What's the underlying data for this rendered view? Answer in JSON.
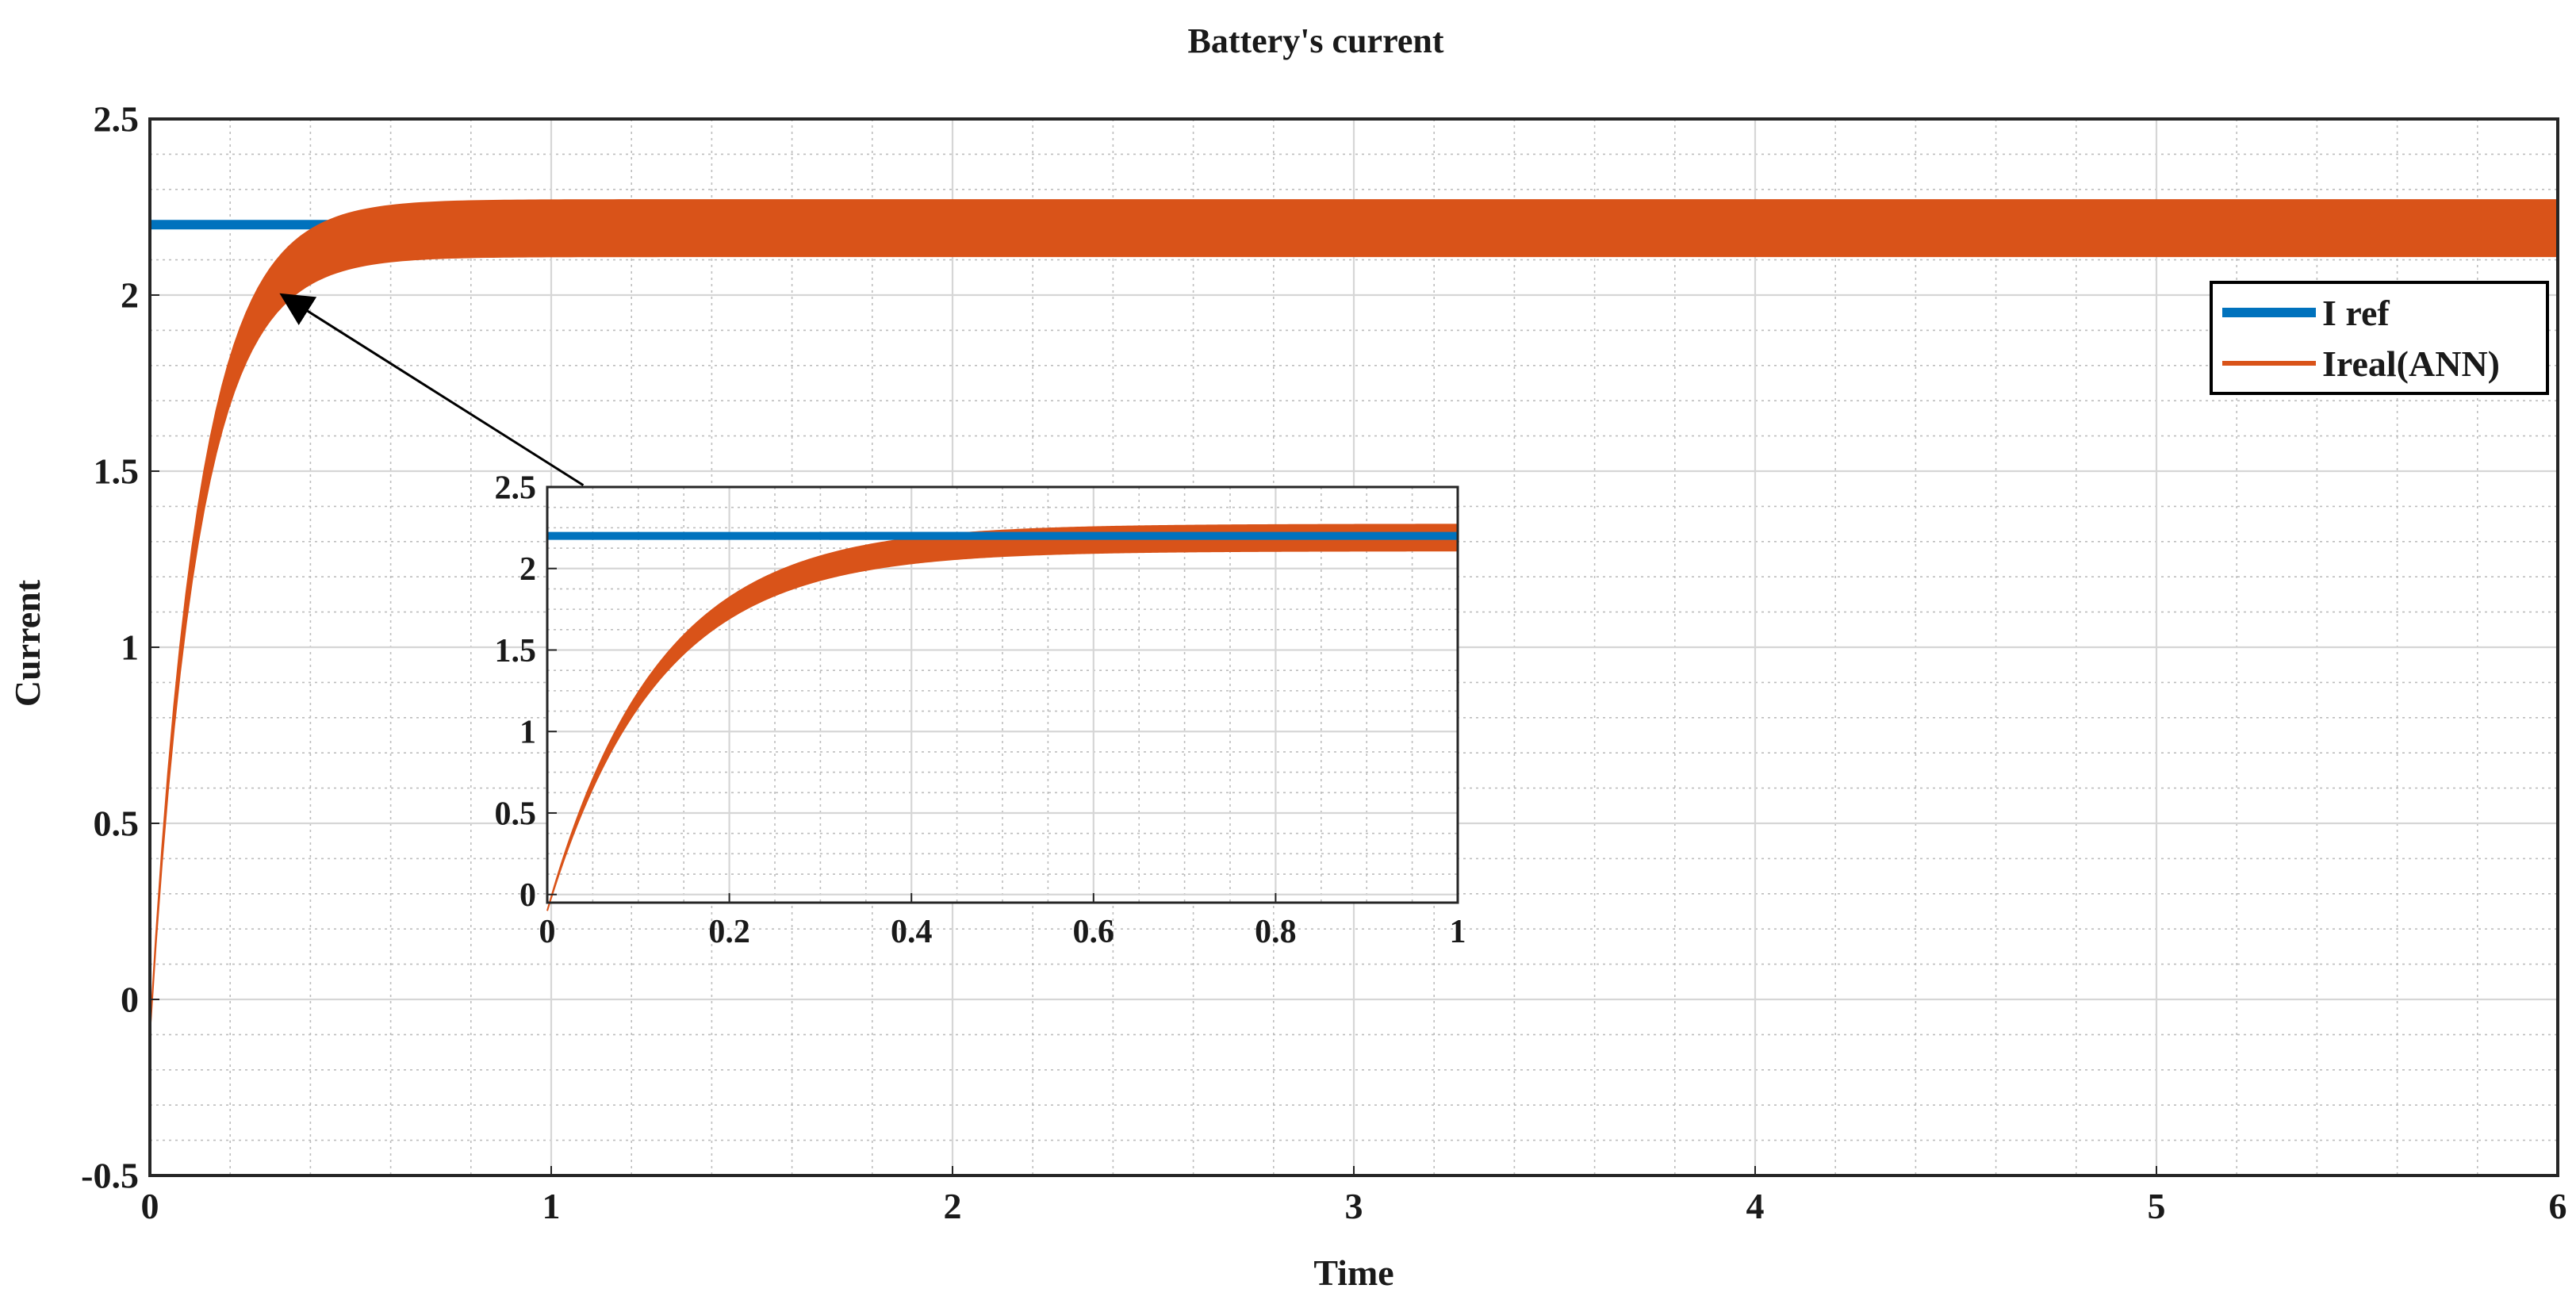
{
  "chart_data": {
    "type": "line",
    "title": "Battery's current",
    "xlabel": "Time",
    "ylabel": "Current",
    "xlim": [
      0,
      6
    ],
    "ylim": [
      -0.5,
      2.5
    ],
    "xticks": [
      0,
      1,
      2,
      3,
      4,
      5,
      6
    ],
    "xtick_labels": [
      "0",
      "1",
      "2",
      "3",
      "4",
      "5",
      "6"
    ],
    "yticks": [
      -0.5,
      0,
      0.5,
      1,
      1.5,
      2,
      2.5
    ],
    "ytick_labels": [
      "-0.5",
      "0",
      "0.5",
      "1",
      "1.5",
      "2",
      "2.5"
    ],
    "grid": true,
    "minor_grid": true,
    "legend_position": "top-right",
    "series": [
      {
        "name": "I ref",
        "color": "#0072BD",
        "style": "constant",
        "value": 2.2
      },
      {
        "name": "Ireal(ANN)",
        "color": "#D95319",
        "style": "ripple band",
        "start_value": -0.1,
        "steady_mean": 2.19,
        "band_low": 2.11,
        "band_high": 2.27,
        "time_constant": 0.12
      }
    ],
    "annotation": {
      "type": "arrow",
      "from": [
        1.08,
        1.46
      ],
      "to": [
        0.33,
        2.0
      ]
    },
    "inset": {
      "xlim": [
        0,
        1
      ],
      "ylim": [
        -0.05,
        2.5
      ],
      "xticks": [
        0,
        0.2,
        0.4,
        0.6,
        0.8,
        1
      ],
      "xtick_labels": [
        "0",
        "0.2",
        "0.4",
        "0.6",
        "0.8",
        "1"
      ],
      "yticks": [
        0,
        0.5,
        1,
        1.5,
        2,
        2.5
      ],
      "ytick_labels": [
        "0",
        "0.5",
        "1",
        "1.5",
        "2",
        "2.5"
      ]
    }
  }
}
